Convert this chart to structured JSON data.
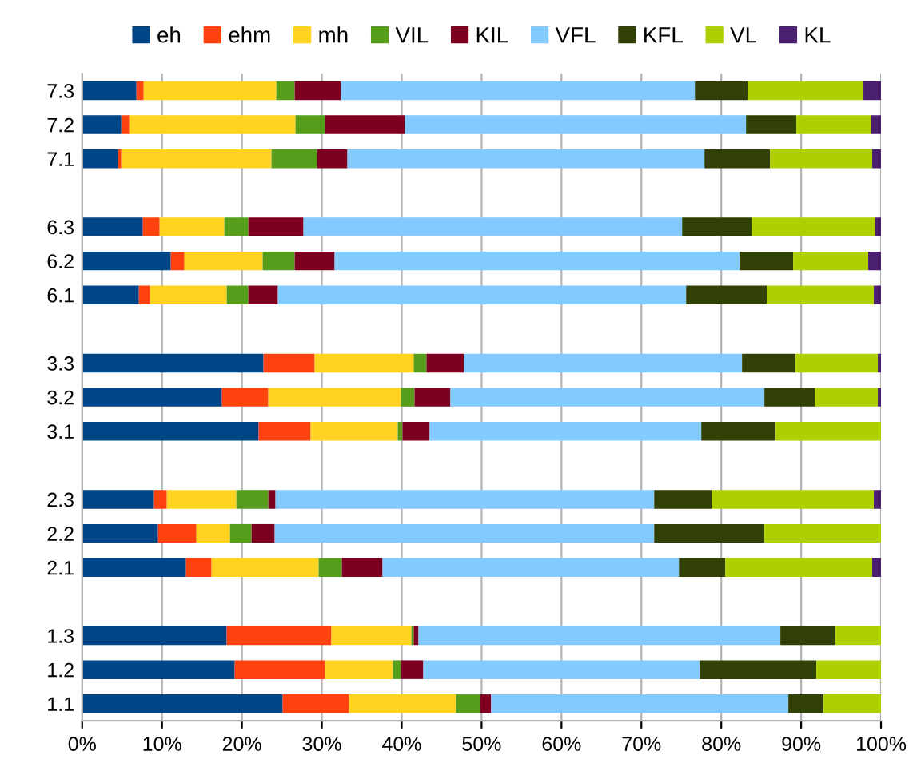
{
  "chart_data": {
    "type": "bar",
    "orientation": "horizontal",
    "stacked": true,
    "legend": "top",
    "grid": "x",
    "categories": [
      "7.3",
      "7.2",
      "7.1",
      null,
      "6.3",
      "6.2",
      "6.1",
      null,
      "3.3",
      "3.2",
      "3.1",
      null,
      "2.3",
      "2.2",
      "2.1",
      null,
      "1.3",
      "1.2",
      "1.1"
    ],
    "xlim": [
      0,
      100
    ],
    "xticks": [
      {
        "value": 0,
        "label": "0%"
      },
      {
        "value": 10,
        "label": "10%"
      },
      {
        "value": 20,
        "label": "20%"
      },
      {
        "value": 30,
        "label": "30%"
      },
      {
        "value": 40,
        "label": "40%"
      },
      {
        "value": 50,
        "label": "50%"
      },
      {
        "value": 60,
        "label": "60%"
      },
      {
        "value": 70,
        "label": "70%"
      },
      {
        "value": 80,
        "label": "80%"
      },
      {
        "value": 90,
        "label": "90%"
      },
      {
        "value": 100,
        "label": "100%"
      }
    ],
    "series": [
      {
        "name": "eh",
        "color": "#004586",
        "values": [
          6.8,
          4.9,
          4.5,
          null,
          7.6,
          11.1,
          7.1,
          null,
          22.7,
          17.5,
          22.1,
          null,
          9.0,
          9.5,
          13.0,
          null,
          18.1,
          19.1,
          25.1
        ]
      },
      {
        "name": "ehm",
        "color": "#ff420e",
        "values": [
          0.9,
          1.0,
          0.4,
          null,
          2.1,
          1.7,
          1.4,
          null,
          6.4,
          5.8,
          6.5,
          null,
          1.6,
          4.8,
          3.2,
          null,
          13.1,
          11.3,
          8.3
        ]
      },
      {
        "name": "mh",
        "color": "#ffd320",
        "values": [
          16.6,
          20.8,
          18.8,
          null,
          8.1,
          9.8,
          9.6,
          null,
          12.4,
          16.6,
          10.9,
          null,
          8.7,
          4.2,
          13.4,
          null,
          10.0,
          8.5,
          13.4
        ]
      },
      {
        "name": "VIL",
        "color": "#579d1c",
        "values": [
          2.3,
          3.7,
          5.7,
          null,
          3.0,
          4.0,
          2.7,
          null,
          1.6,
          1.7,
          0.6,
          null,
          4.0,
          2.7,
          2.9,
          null,
          0.3,
          1.0,
          3.0
        ]
      },
      {
        "name": "KIL",
        "color": "#7e0021",
        "values": [
          5.8,
          10.0,
          3.8,
          null,
          6.9,
          5.0,
          3.7,
          null,
          4.7,
          4.5,
          3.4,
          null,
          0.9,
          2.9,
          5.1,
          null,
          0.6,
          2.8,
          1.4
        ]
      },
      {
        "name": "VFL",
        "color": "#83caff",
        "values": [
          44.3,
          42.7,
          44.7,
          null,
          47.4,
          50.7,
          51.1,
          null,
          34.8,
          39.3,
          34.0,
          null,
          47.4,
          47.5,
          37.1,
          null,
          45.3,
          34.6,
          37.2
        ]
      },
      {
        "name": "KFL",
        "color": "#314004",
        "values": [
          6.6,
          6.3,
          8.2,
          null,
          8.7,
          6.7,
          10.1,
          null,
          6.7,
          6.3,
          9.3,
          null,
          7.2,
          13.8,
          5.8,
          null,
          6.9,
          14.6,
          4.4
        ]
      },
      {
        "name": "VL",
        "color": "#aecf00",
        "values": [
          14.5,
          9.3,
          12.8,
          null,
          15.4,
          9.4,
          13.4,
          null,
          10.3,
          7.9,
          13.2,
          null,
          20.3,
          14.6,
          18.4,
          null,
          5.7,
          8.1,
          7.2
        ]
      },
      {
        "name": "KL",
        "color": "#4b1f6f",
        "values": [
          2.2,
          1.3,
          1.1,
          null,
          0.8,
          1.6,
          0.9,
          null,
          0.4,
          0.4,
          0,
          null,
          0.9,
          0,
          1.1,
          null,
          0,
          0,
          0
        ]
      }
    ]
  }
}
